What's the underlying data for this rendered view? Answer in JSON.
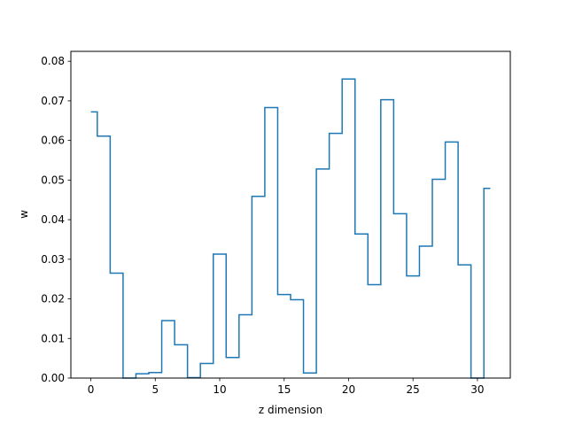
{
  "chart_data": {
    "type": "line",
    "drawstyle": "steps-mid",
    "title": "",
    "xlabel": "z dimension",
    "ylabel": "w",
    "xlim": [
      -1.55,
      32.55
    ],
    "ylim": [
      0,
      0.0825
    ],
    "xticks": [
      0,
      5,
      10,
      15,
      20,
      25,
      30
    ],
    "yticks": [
      "0.00",
      "0.01",
      "0.02",
      "0.03",
      "0.04",
      "0.05",
      "0.06",
      "0.07",
      "0.08"
    ],
    "grid": false,
    "legend": "none",
    "color": "#1f77b4",
    "series": [
      {
        "x": [
          0,
          1,
          2,
          3,
          4,
          5,
          6,
          7,
          8,
          9,
          10,
          11,
          12,
          13,
          14,
          15,
          16,
          17,
          18,
          19,
          20,
          21,
          22,
          23,
          24,
          25,
          26,
          27,
          28,
          29,
          30,
          31
        ],
        "values": [
          0.0672,
          0.0611,
          0.0265,
          0.0,
          0.0011,
          0.0014,
          0.0145,
          0.0084,
          0.0001,
          0.0037,
          0.0313,
          0.0052,
          0.016,
          0.0459,
          0.0683,
          0.0211,
          0.0198,
          0.0013,
          0.0528,
          0.0618,
          0.0755,
          0.0364,
          0.0236,
          0.0703,
          0.0415,
          0.0258,
          0.0333,
          0.0502,
          0.0596,
          0.0286,
          0.0,
          0.0479
        ]
      }
    ]
  }
}
